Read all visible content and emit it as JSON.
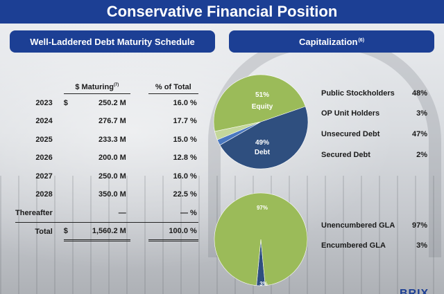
{
  "title": "Conservative Financial Position",
  "left_header": "Well-Laddered Debt Maturity Schedule",
  "right_header": "Capitalization",
  "right_header_note": "(6)",
  "table": {
    "col_maturing": "$ Maturing",
    "col_maturing_note": "(7)",
    "col_pct": "% of Total",
    "rows": [
      {
        "year": "2023",
        "dollar": "$",
        "amount": "250.2 M",
        "pct": "16.0 %"
      },
      {
        "year": "2024",
        "dollar": "",
        "amount": "276.7 M",
        "pct": "17.7 %"
      },
      {
        "year": "2025",
        "dollar": "",
        "amount": "233.3 M",
        "pct": "15.0 %"
      },
      {
        "year": "2026",
        "dollar": "",
        "amount": "200.0 M",
        "pct": "12.8 %"
      },
      {
        "year": "2027",
        "dollar": "",
        "amount": "250.0 M",
        "pct": "16.0 %"
      },
      {
        "year": "2028",
        "dollar": "",
        "amount": "350.0 M",
        "pct": "22.5 %"
      },
      {
        "year": "Thereafter",
        "dollar": "",
        "amount": "—",
        "pct": "— %"
      }
    ],
    "total": {
      "year": "Total",
      "dollar": "$",
      "amount": "1,560.2 M",
      "pct": "100.0 %"
    }
  },
  "chart_data": [
    {
      "type": "pie",
      "title": "Capitalization",
      "labels": [
        "Public Stockholders",
        "OP Unit Holders",
        "Unsecured Debt",
        "Secured Debt"
      ],
      "values": [
        48,
        3,
        47,
        2
      ],
      "colors": [
        "#9bbb59",
        "#c4d79b",
        "#2f4f7f",
        "#4a78c0"
      ],
      "slice_labels": [
        {
          "pct": "51%",
          "name": "Equity"
        },
        {
          "pct": "49%",
          "name": "Debt"
        }
      ]
    },
    {
      "type": "pie",
      "labels": [
        "Unencumbered GLA",
        "Encumbered GLA"
      ],
      "values": [
        97,
        3
      ],
      "colors": [
        "#9bbb59",
        "#2f4f7f"
      ],
      "slice_labels": [
        {
          "pct": "97%"
        },
        {
          "pct": "3%"
        }
      ]
    }
  ],
  "legend_cap": [
    {
      "label": "Public Stockholders",
      "value": "48%"
    },
    {
      "label": "OP Unit Holders",
      "value": "3%"
    },
    {
      "label": "Unsecured Debt",
      "value": "47%"
    },
    {
      "label": "Secured Debt",
      "value": "2%"
    }
  ],
  "legend_gla": [
    {
      "label": "Unencumbered GLA",
      "value": "97%"
    },
    {
      "label": "Encumbered GLA",
      "value": "3%"
    }
  ],
  "logo_text": "BRIX"
}
